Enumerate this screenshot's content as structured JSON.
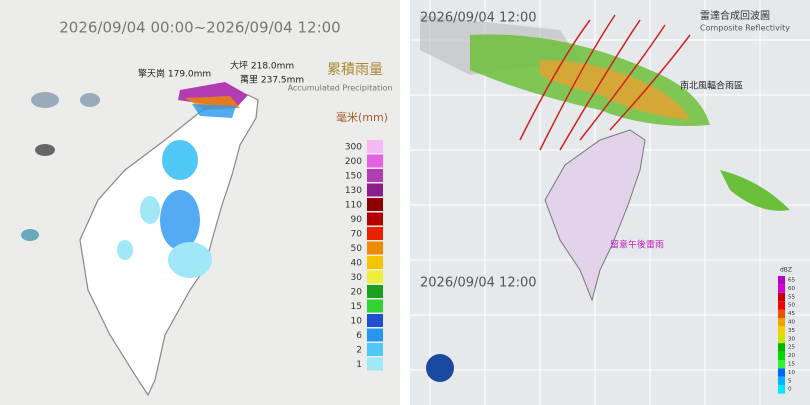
{
  "left_map": {
    "title": "2026/09/04 00:00~2026/09/04 12:00",
    "stations": [
      {
        "name": "大坪 218.0mm"
      },
      {
        "name": "擎天崗 179.0mm"
      },
      {
        "name": "萬里 237.5mm"
      }
    ],
    "legend_title_zh": "累積雨量",
    "legend_title_en": "Accumulated Precipitation",
    "legend_unit": "毫米(mm)",
    "legend": [
      {
        "label": 300,
        "color": "#f5b8f5"
      },
      {
        "label": 200,
        "color": "#e660e6"
      },
      {
        "label": 150,
        "color": "#b23cb2"
      },
      {
        "label": 130,
        "color": "#8c1e8c"
      },
      {
        "label": 110,
        "color": "#8c0000"
      },
      {
        "label": 90,
        "color": "#b40000"
      },
      {
        "label": 70,
        "color": "#e62200"
      },
      {
        "label": 50,
        "color": "#f08a00"
      },
      {
        "label": 40,
        "color": "#f5c400"
      },
      {
        "label": 30,
        "color": "#f0ee3c"
      },
      {
        "label": 20,
        "color": "#1e9e1e"
      },
      {
        "label": 15,
        "color": "#32d232"
      },
      {
        "label": 10,
        "color": "#1e50d2"
      },
      {
        "label": 6,
        "color": "#2896f0"
      },
      {
        "label": 2,
        "color": "#50c8f5"
      },
      {
        "label": 1,
        "color": "#a0e8f8"
      }
    ]
  },
  "right_map": {
    "title_zh": "雷達合成回波圖",
    "title_en": "Composite Reflectivity",
    "time_top": "2026/09/04 12:00",
    "time_bottom": "2026/09/04 12:00",
    "annotations": [
      "南北風輻合雨區",
      "留意午後雷雨"
    ],
    "scale_unit": "dBZ",
    "scale": [
      {
        "label": 65,
        "color": "#b400c8"
      },
      {
        "label": 60,
        "color": "#d200d2"
      },
      {
        "label": 55,
        "color": "#c80000"
      },
      {
        "label": 50,
        "color": "#f00000"
      },
      {
        "label": 45,
        "color": "#f05000"
      },
      {
        "label": 40,
        "color": "#f0a000"
      },
      {
        "label": 35,
        "color": "#f0d200"
      },
      {
        "label": 30,
        "color": "#c8e600"
      },
      {
        "label": 25,
        "color": "#00b400"
      },
      {
        "label": 20,
        "color": "#00dc00"
      },
      {
        "label": 15,
        "color": "#32f032"
      },
      {
        "label": 10,
        "color": "#0064ff"
      },
      {
        "label": 5,
        "color": "#00b4ff"
      },
      {
        "label": 0,
        "color": "#00e6ff"
      }
    ]
  }
}
